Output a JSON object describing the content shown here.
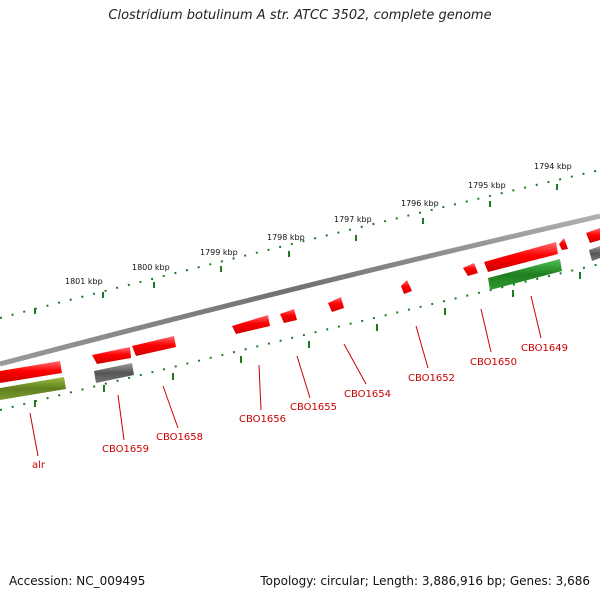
{
  "title": "Clostridium botulinum A str. ATCC 3502, complete genome",
  "footer": {
    "accession": "Accession: NC_009495",
    "topology": "Topology: circular; Length: 3,886,916 bp; Genes: 3,686"
  },
  "colors": {
    "forward_gene": "#ff0000",
    "reverse_gene": "#ff0000",
    "rna_gene_dark": "#606060",
    "green_gene": "#228b22",
    "olive_gene": "#6b8e23",
    "backbone": "#808080",
    "ticks": "#1e7a1e",
    "label": "#cc0000"
  },
  "kbp_labels": [
    "1801 kbp",
    "1800 kbp",
    "1799 kbp",
    "1798 kbp",
    "1797 kbp",
    "1796 kbp",
    "1795 kbp",
    "1794 kbp"
  ],
  "gene_labels": [
    "alr",
    "CBO1659",
    "CBO1658",
    "CBO1656",
    "CBO1655",
    "CBO1654",
    "CBO1652",
    "CBO1650",
    "CBO1649"
  ]
}
